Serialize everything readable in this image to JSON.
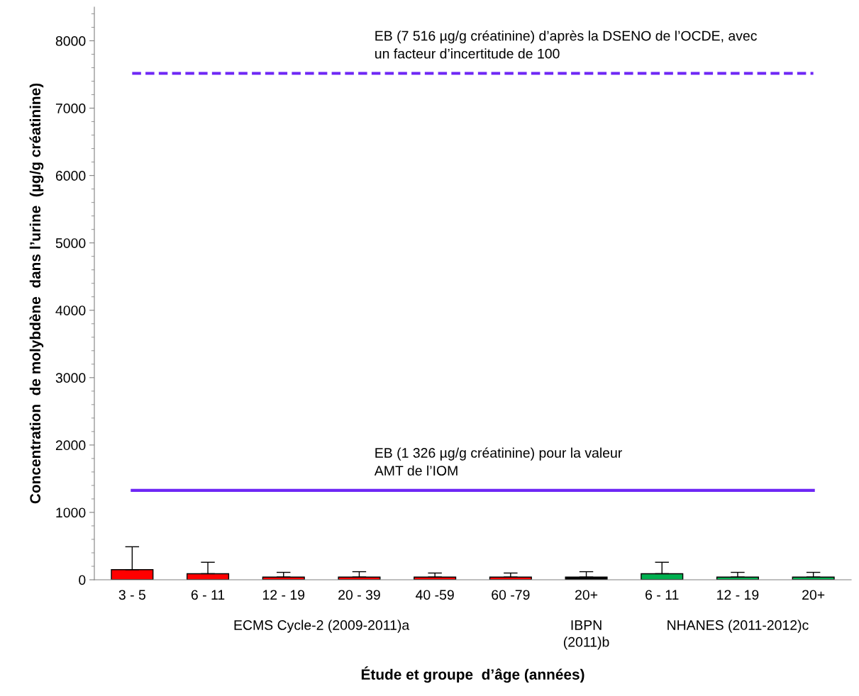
{
  "chart_data": {
    "type": "bar",
    "xlabel": "Étude et groupe  d’âge (années)",
    "ylabel": "Concentration  de molybdène  dans l’urine  (µg/g créatinine)",
    "categories": [
      "3 - 5",
      "6 - 11",
      "12 - 19",
      "20 - 39",
      "40 -59",
      "60 -79",
      "20+",
      "6 - 11",
      "12 - 19",
      "20+"
    ],
    "values": [
      150,
      90,
      40,
      40,
      40,
      40,
      40,
      90,
      40,
      40
    ],
    "colors": [
      "#ff0000",
      "#ff0000",
      "#ff0000",
      "#ff0000",
      "#ff0000",
      "#ff0000",
      "#000000",
      "#00b050",
      "#00b050",
      "#00b050"
    ],
    "errors": [
      [
        150,
        490
      ],
      [
        90,
        260
      ],
      [
        40,
        110
      ],
      [
        40,
        120
      ],
      [
        40,
        100
      ],
      [
        40,
        100
      ],
      [
        40,
        120
      ],
      [
        90,
        260
      ],
      [
        40,
        110
      ],
      [
        40,
        110
      ]
    ],
    "ylim": [
      0,
      8500
    ],
    "yticks": [
      0,
      1000,
      2000,
      3000,
      4000,
      5000,
      6000,
      7000,
      8000
    ],
    "grid": false,
    "legend": false,
    "ref_lines": [
      {
        "axis": "y",
        "value": 7516,
        "label": "EB (7 516 µg/g créatinine) d’après la DSENO de l’OCDE, avec\nun facteur d’incertitude de 100",
        "color": "#6e27f5",
        "line_style": "dashed"
      },
      {
        "axis": "y",
        "value": 1326,
        "label": "EB (1 326 µg/g créatinine) pour la valeur\nAMT de l’IOM",
        "color": "#6e27f5",
        "line_style": "solid"
      }
    ],
    "annotations": [
      "ECMS Cycle-2 (2009-2011)a",
      "IBPN\n(2011)b",
      "NHANES (2011-2012)c"
    ]
  }
}
